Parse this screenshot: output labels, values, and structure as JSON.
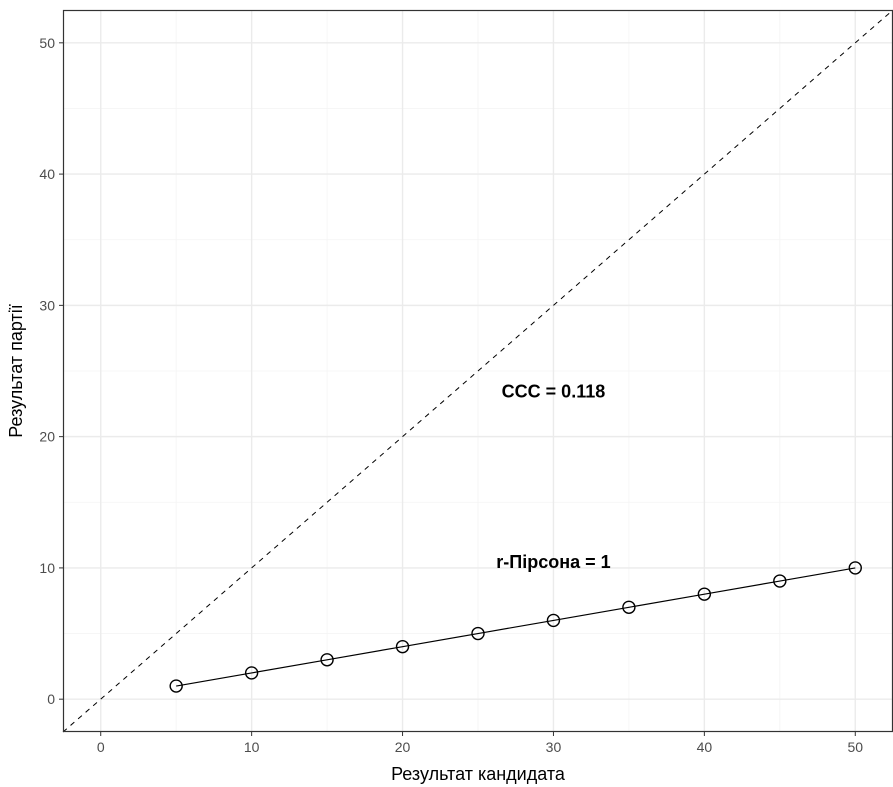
{
  "chart_data": {
    "type": "scatter",
    "title": "",
    "xlabel": "Результат кандидата",
    "ylabel": "Результат партії",
    "xlim": [
      -2.5,
      52.5
    ],
    "ylim": [
      -2.5,
      52.5
    ],
    "x_ticks": [
      0,
      10,
      20,
      30,
      40,
      50
    ],
    "y_ticks": [
      0,
      10,
      20,
      30,
      40,
      50
    ],
    "grid": true,
    "series": [
      {
        "x": [
          5,
          10,
          15,
          20,
          25,
          30,
          35,
          40,
          45,
          50
        ],
        "y": [
          1,
          2,
          3,
          4,
          5,
          6,
          7,
          8,
          9,
          10
        ]
      }
    ],
    "reference_line": {
      "style": "dashed",
      "slope": 1,
      "intercept": 0
    },
    "annotations": [
      {
        "text": "CCC = 0.118",
        "x": 30,
        "y": 23
      },
      {
        "text": "r-Пірсона = 1",
        "x": 30,
        "y": 10
      }
    ]
  },
  "colors": {
    "background": "#ffffff",
    "grid_major": "#ebebeb",
    "grid_minor": "#f4f4f4",
    "panel_border": "#333333",
    "points": "#000000",
    "line": "#000000"
  }
}
